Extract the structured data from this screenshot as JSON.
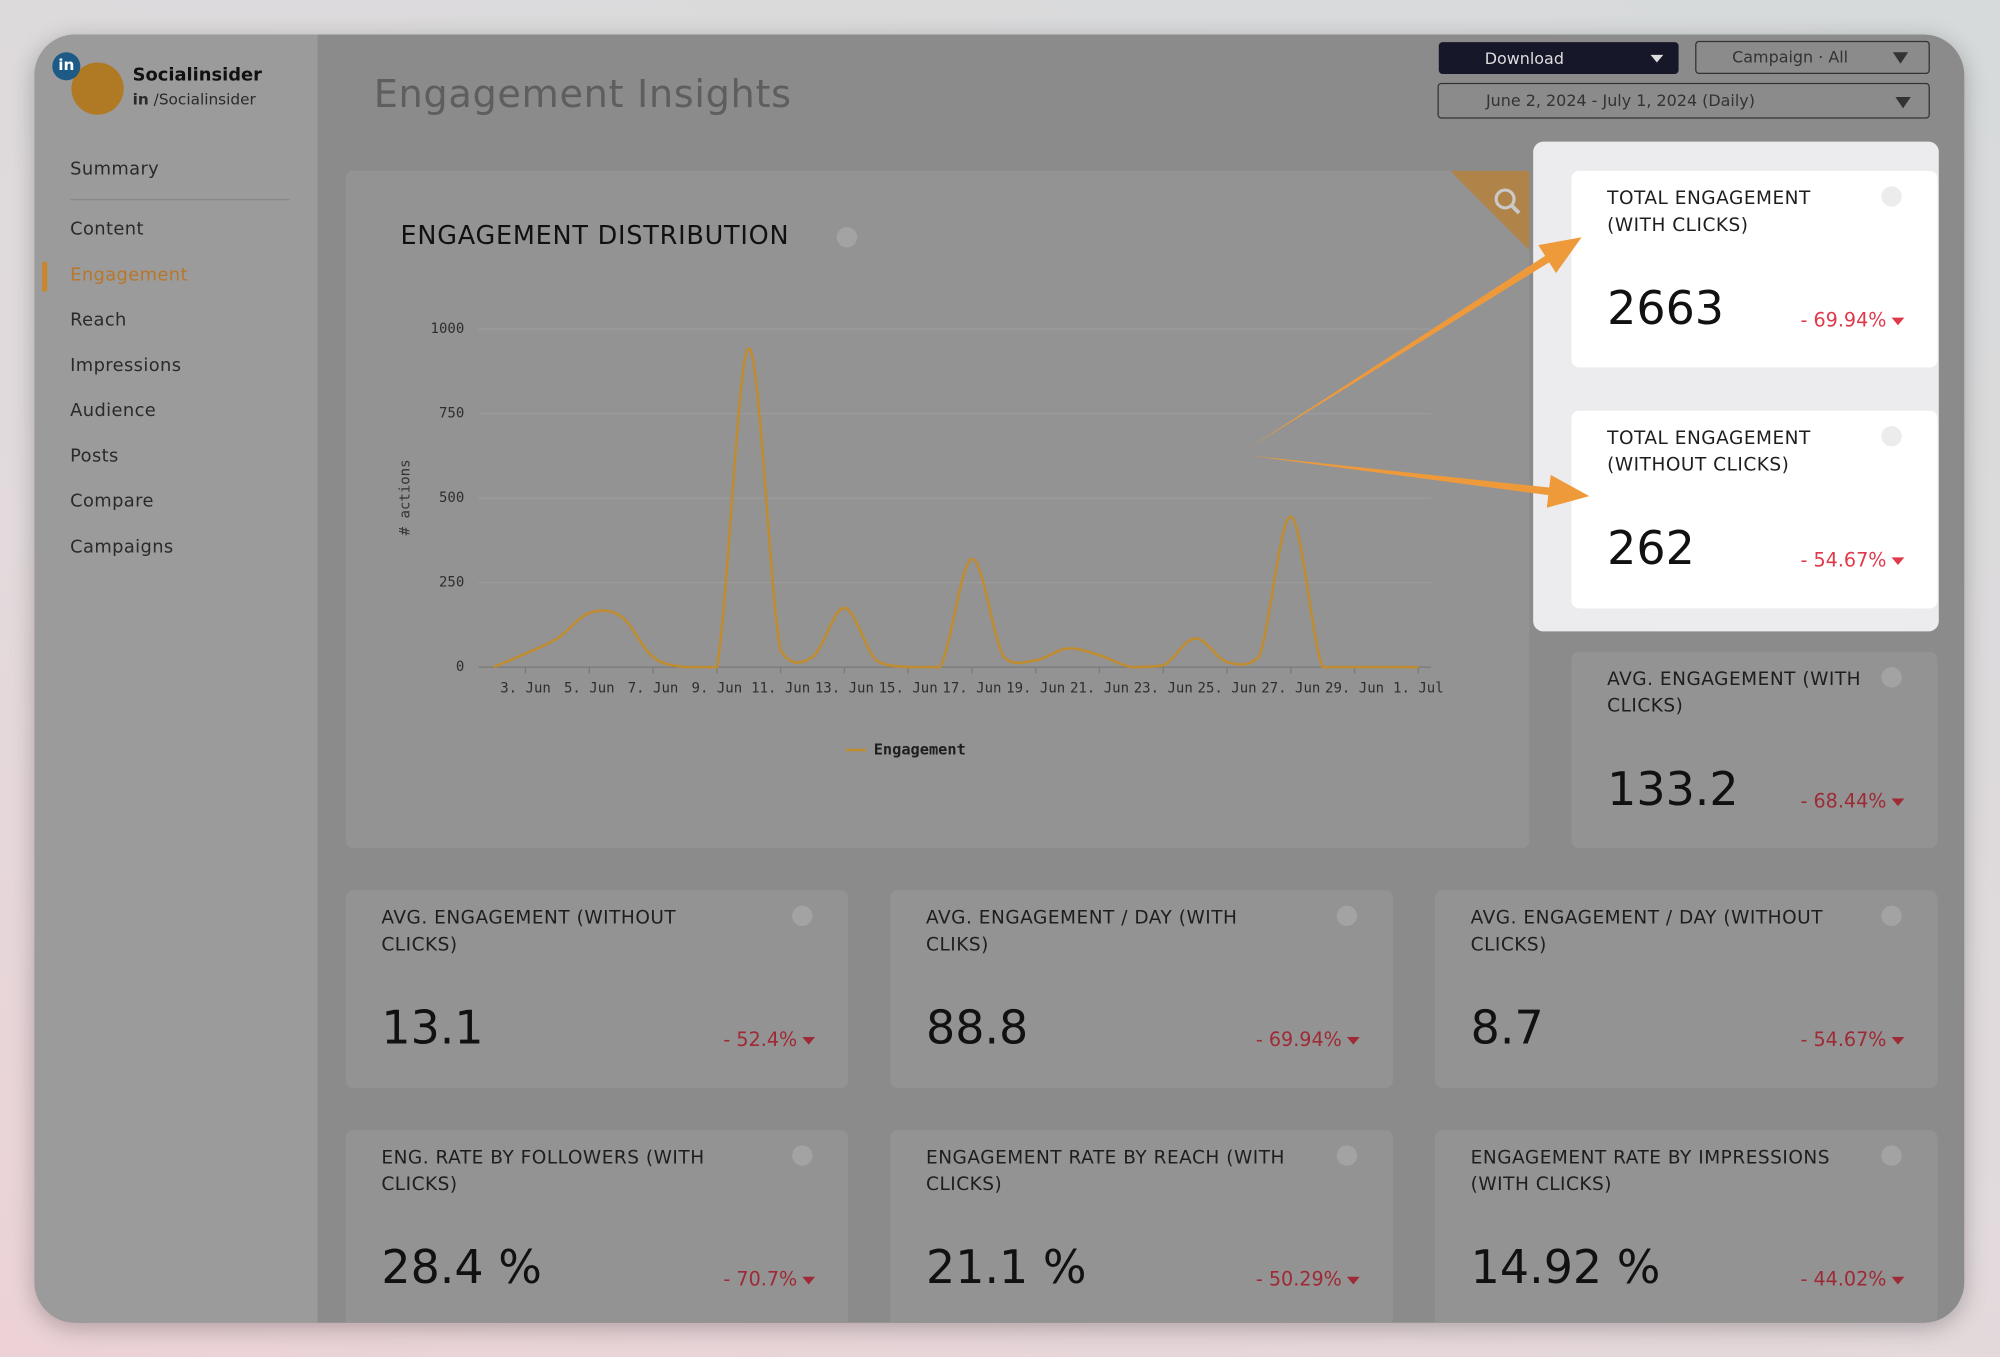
{
  "profile": {
    "name": "Socialinsider",
    "network": "in",
    "handle": "/Socialinsider"
  },
  "nav": [
    "Summary",
    "Content",
    "Engagement",
    "Reach",
    "Impressions",
    "Audience",
    "Posts",
    "Compare",
    "Campaigns"
  ],
  "active_nav": 2,
  "header": {
    "title": "Engagement Insights",
    "download": "Download",
    "campaign": "Campaign · All",
    "date_range": "June 2, 2024 - July 1, 2024 (Daily)"
  },
  "chart_data": {
    "type": "line",
    "title": "ENGAGEMENT DISTRIBUTION",
    "y_label": "# actions",
    "categories": [
      null,
      "3. Jun",
      null,
      "5. Jun",
      null,
      "7. Jun",
      null,
      "9. Jun",
      null,
      "11. Jun",
      null,
      "13. Jun",
      null,
      "15. Jun",
      null,
      "17. Jun",
      null,
      "19. Jun",
      null,
      "21. Jun",
      null,
      "23. Jun",
      null,
      "25. Jun",
      null,
      "27. Jun",
      null,
      "29. Jun",
      null,
      "1. Jul"
    ],
    "series": [
      {
        "name": "Engagement",
        "color": "#c08c30",
        "values": [
          0,
          40,
          85,
          160,
          150,
          30,
          0,
          0,
          943,
          50,
          30,
          175,
          20,
          0,
          0,
          320,
          30,
          20,
          55,
          35,
          0,
          5,
          85,
          15,
          30,
          445,
          0,
          0,
          0,
          0
        ]
      }
    ],
    "ylim": [
      0,
      1000
    ],
    "yticks": [
      0,
      250,
      500,
      750,
      1000
    ],
    "grid": true,
    "legend": "bottom"
  },
  "cards": [
    {
      "title": "TOTAL ENGAGEMENT (WITH CLICKS)",
      "value": "2663",
      "change": "- 69.94%"
    },
    {
      "title": "TOTAL ENGAGEMENT (WITHOUT CLICKS)",
      "value": "262",
      "change": "- 54.67%"
    },
    {
      "title": "AVG. ENGAGEMENT (WITH CLICKS)",
      "value": "133.2",
      "change": "- 68.44%"
    },
    {
      "title": "AVG. ENGAGEMENT (WITHOUT CLICKS)",
      "value": "13.1",
      "change": "- 52.4%"
    },
    {
      "title": "AVG. ENGAGEMENT / DAY (WITH CLIKS)",
      "value": "88.8",
      "change": "- 69.94%"
    },
    {
      "title": "AVG. ENGAGEMENT / DAY (WITHOUT CLICKS)",
      "value": "8.7",
      "change": "- 54.67%"
    },
    {
      "title": "ENG. RATE BY FOLLOWERS (WITH CLICKS)",
      "value": "28.4 %",
      "change": "- 70.7%"
    },
    {
      "title": "ENGAGEMENT RATE BY REACH (WITH CLICKS)",
      "value": "21.1 %",
      "change": "- 50.29%"
    },
    {
      "title": "ENGAGEMENT RATE BY IMPRESSIONS (WITH CLICKS)",
      "value": "14.92 %",
      "change": "- 44.02%"
    }
  ]
}
